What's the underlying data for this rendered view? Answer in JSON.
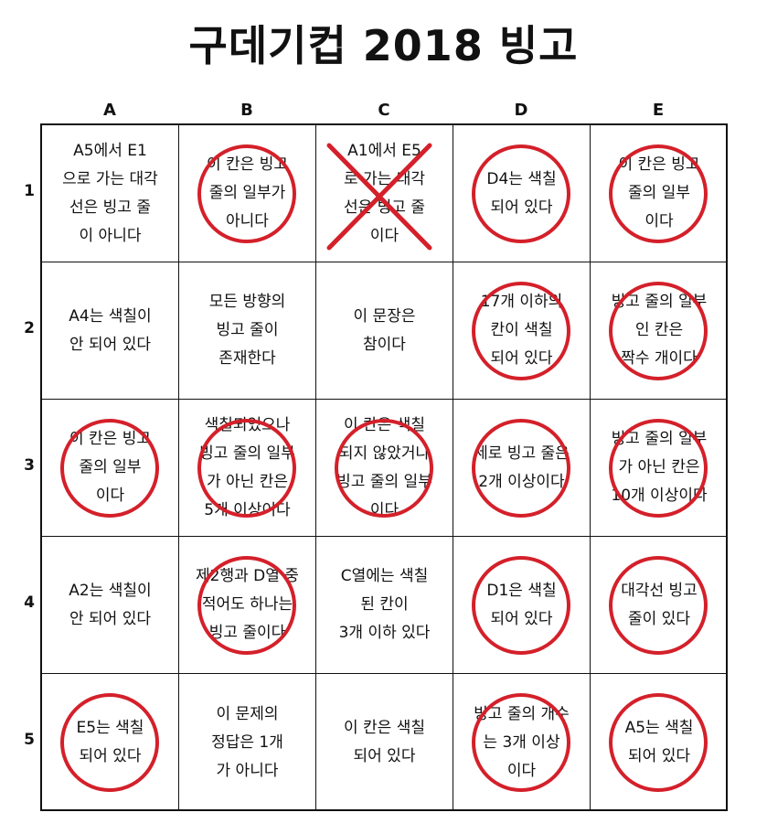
{
  "title": "구데기컵 2018 빙고",
  "columns": [
    "A",
    "B",
    "C",
    "D",
    "E"
  ],
  "rows": [
    "1",
    "2",
    "3",
    "4",
    "5"
  ],
  "mark_color": "#d4202a",
  "cells": [
    [
      {
        "text": "A5에서 E1\n으로 가는 대각\n선은 빙고 줄\n이 아니다",
        "mark": "none"
      },
      {
        "text": "이 칸은 빙고\n줄의 일부가\n아니다",
        "mark": "circle"
      },
      {
        "text": "A1에서 E5\n로 가는 대각\n선은 빙고 줄\n이다",
        "mark": "x"
      },
      {
        "text": "D4는 색칠\n되어 있다",
        "mark": "circle"
      },
      {
        "text": "이 칸은 빙고\n줄의 일부\n이다",
        "mark": "circle"
      }
    ],
    [
      {
        "text": "A4는 색칠이\n안 되어 있다",
        "mark": "none"
      },
      {
        "text": "모든 방향의\n빙고 줄이\n존재한다",
        "mark": "none"
      },
      {
        "text": "이 문장은\n참이다",
        "mark": "none"
      },
      {
        "text": "17개 이하의\n칸이 색칠\n되어 있다",
        "mark": "circle"
      },
      {
        "text": "빙고 줄의 일부\n인 칸은\n짝수 개이다",
        "mark": "circle"
      }
    ],
    [
      {
        "text": "이 칸은 빙고\n줄의 일부\n이다",
        "mark": "circle"
      },
      {
        "text": "색칠되었으나\n빙고 줄의 일부\n가 아닌 칸은\n5개 이상이다",
        "mark": "circle"
      },
      {
        "text": "이 칸은 색칠\n되지 않았거나\n빙고 줄의 일부\n이다",
        "mark": "circle"
      },
      {
        "text": "세로 빙고 줄은\n2개 이상이다",
        "mark": "circle"
      },
      {
        "text": "빙고 줄의 일부\n가 아닌 칸은\n10개 이상이다",
        "mark": "circle"
      }
    ],
    [
      {
        "text": "A2는 색칠이\n안 되어 있다",
        "mark": "none"
      },
      {
        "text": "제2행과 D열 중\n적어도 하나는\n빙고 줄이다",
        "mark": "circle"
      },
      {
        "text": "C열에는 색칠\n된 칸이\n3개 이하 있다",
        "mark": "none"
      },
      {
        "text": "D1은 색칠\n되어 있다",
        "mark": "circle"
      },
      {
        "text": "대각선 빙고\n줄이 있다",
        "mark": "circle"
      }
    ],
    [
      {
        "text": "E5는 색칠\n되어 있다",
        "mark": "circle"
      },
      {
        "text": "이 문제의\n정답은 1개\n가 아니다",
        "mark": "none"
      },
      {
        "text": "이 칸은 색칠\n되어 있다",
        "mark": "none"
      },
      {
        "text": "빙고 줄의 개수\n는 3개 이상\n이다",
        "mark": "circle"
      },
      {
        "text": "A5는 색칠\n되어 있다",
        "mark": "circle"
      }
    ]
  ]
}
